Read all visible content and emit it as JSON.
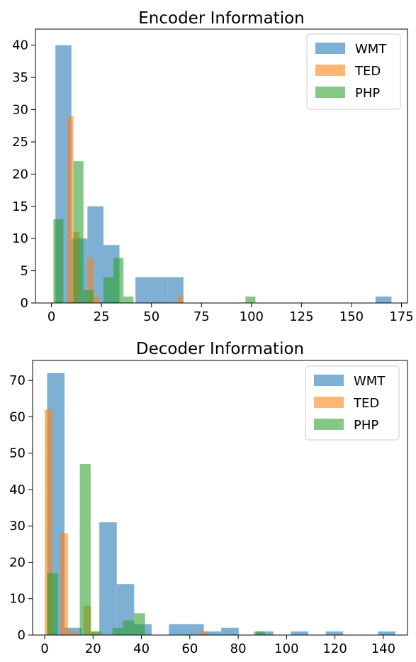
{
  "colors": {
    "WMT": "#1f77b4",
    "TED": "#ff7f0e",
    "PHP": "#2ca02c"
  },
  "chart_data": [
    {
      "type": "histogram",
      "title": "Encoder Information",
      "xlabel": "",
      "ylabel": "",
      "xlim": [
        -8,
        178
      ],
      "ylim": [
        0,
        42.5
      ],
      "xticks": [
        0,
        25,
        50,
        75,
        100,
        125,
        150,
        175
      ],
      "yticks": [
        0,
        5,
        10,
        15,
        20,
        25,
        30,
        35,
        40
      ],
      "grid": false,
      "legend": "top-right",
      "legend_entries": [
        "WMT",
        "TED",
        "PHP"
      ],
      "series": [
        {
          "name": "WMT",
          "bins": [
            [
              2,
              10,
              40
            ],
            [
              10,
              18,
              10
            ],
            [
              18,
              26,
              15
            ],
            [
              26,
              34,
              9
            ],
            [
              34,
              42,
              0
            ],
            [
              42,
              50,
              4
            ],
            [
              50,
              58,
              4
            ],
            [
              58,
              66,
              4
            ],
            [
              162,
              170,
              1
            ]
          ]
        },
        {
          "name": "TED",
          "bins": [
            [
              8,
              11,
              29
            ],
            [
              11,
              14,
              11
            ],
            [
              18,
              21,
              7
            ],
            [
              21,
              24,
              1
            ],
            [
              63,
              66,
              1
            ]
          ]
        },
        {
          "name": "PHP",
          "bins": [
            [
              1,
              6,
              13
            ],
            [
              11,
              16,
              22
            ],
            [
              16,
              21,
              2
            ],
            [
              26,
              31,
              4
            ],
            [
              31,
              36,
              7
            ],
            [
              36,
              41,
              1
            ],
            [
              97,
              102,
              1
            ]
          ]
        }
      ]
    },
    {
      "type": "histogram",
      "title": "Decoder Information",
      "xlabel": "",
      "ylabel": "",
      "xlim": [
        -5,
        150
      ],
      "ylim": [
        0,
        75.5
      ],
      "xticks": [
        0,
        20,
        40,
        60,
        80,
        100,
        120,
        140
      ],
      "yticks": [
        0,
        10,
        20,
        30,
        40,
        50,
        60,
        70
      ],
      "grid": false,
      "legend": "top-right",
      "legend_entries": [
        "WMT",
        "TED",
        "PHP"
      ],
      "series": [
        {
          "name": "WMT",
          "bins": [
            [
              1,
              8.2,
              72
            ],
            [
              8.2,
              15.4,
              2
            ],
            [
              22.6,
              29.8,
              31
            ],
            [
              29.8,
              37,
              14
            ],
            [
              37,
              44.2,
              3
            ],
            [
              51.4,
              58.6,
              3
            ],
            [
              58.6,
              65.8,
              3
            ],
            [
              65.8,
              73,
              1
            ],
            [
              73,
              80.2,
              2
            ],
            [
              87.4,
              94.6,
              1
            ],
            [
              101.8,
              109,
              1
            ],
            [
              116.2,
              123.4,
              1
            ],
            [
              137.8,
              145,
              1
            ]
          ]
        },
        {
          "name": "TED",
          "bins": [
            [
              0,
              3.2,
              62
            ],
            [
              6.4,
              9.6,
              28
            ],
            [
              9.6,
              12.8,
              1
            ],
            [
              16,
              19.2,
              8
            ],
            [
              19.2,
              22.4,
              1
            ],
            [
              64,
              67.2,
              1
            ]
          ]
        },
        {
          "name": "PHP",
          "bins": [
            [
              1,
              5.5,
              17
            ],
            [
              14.5,
              19,
              47
            ],
            [
              19,
              23.5,
              1
            ],
            [
              28,
              32.5,
              2
            ],
            [
              32.5,
              37,
              4
            ],
            [
              37,
              41.5,
              6
            ],
            [
              86.5,
              91,
              1
            ]
          ]
        }
      ]
    }
  ]
}
